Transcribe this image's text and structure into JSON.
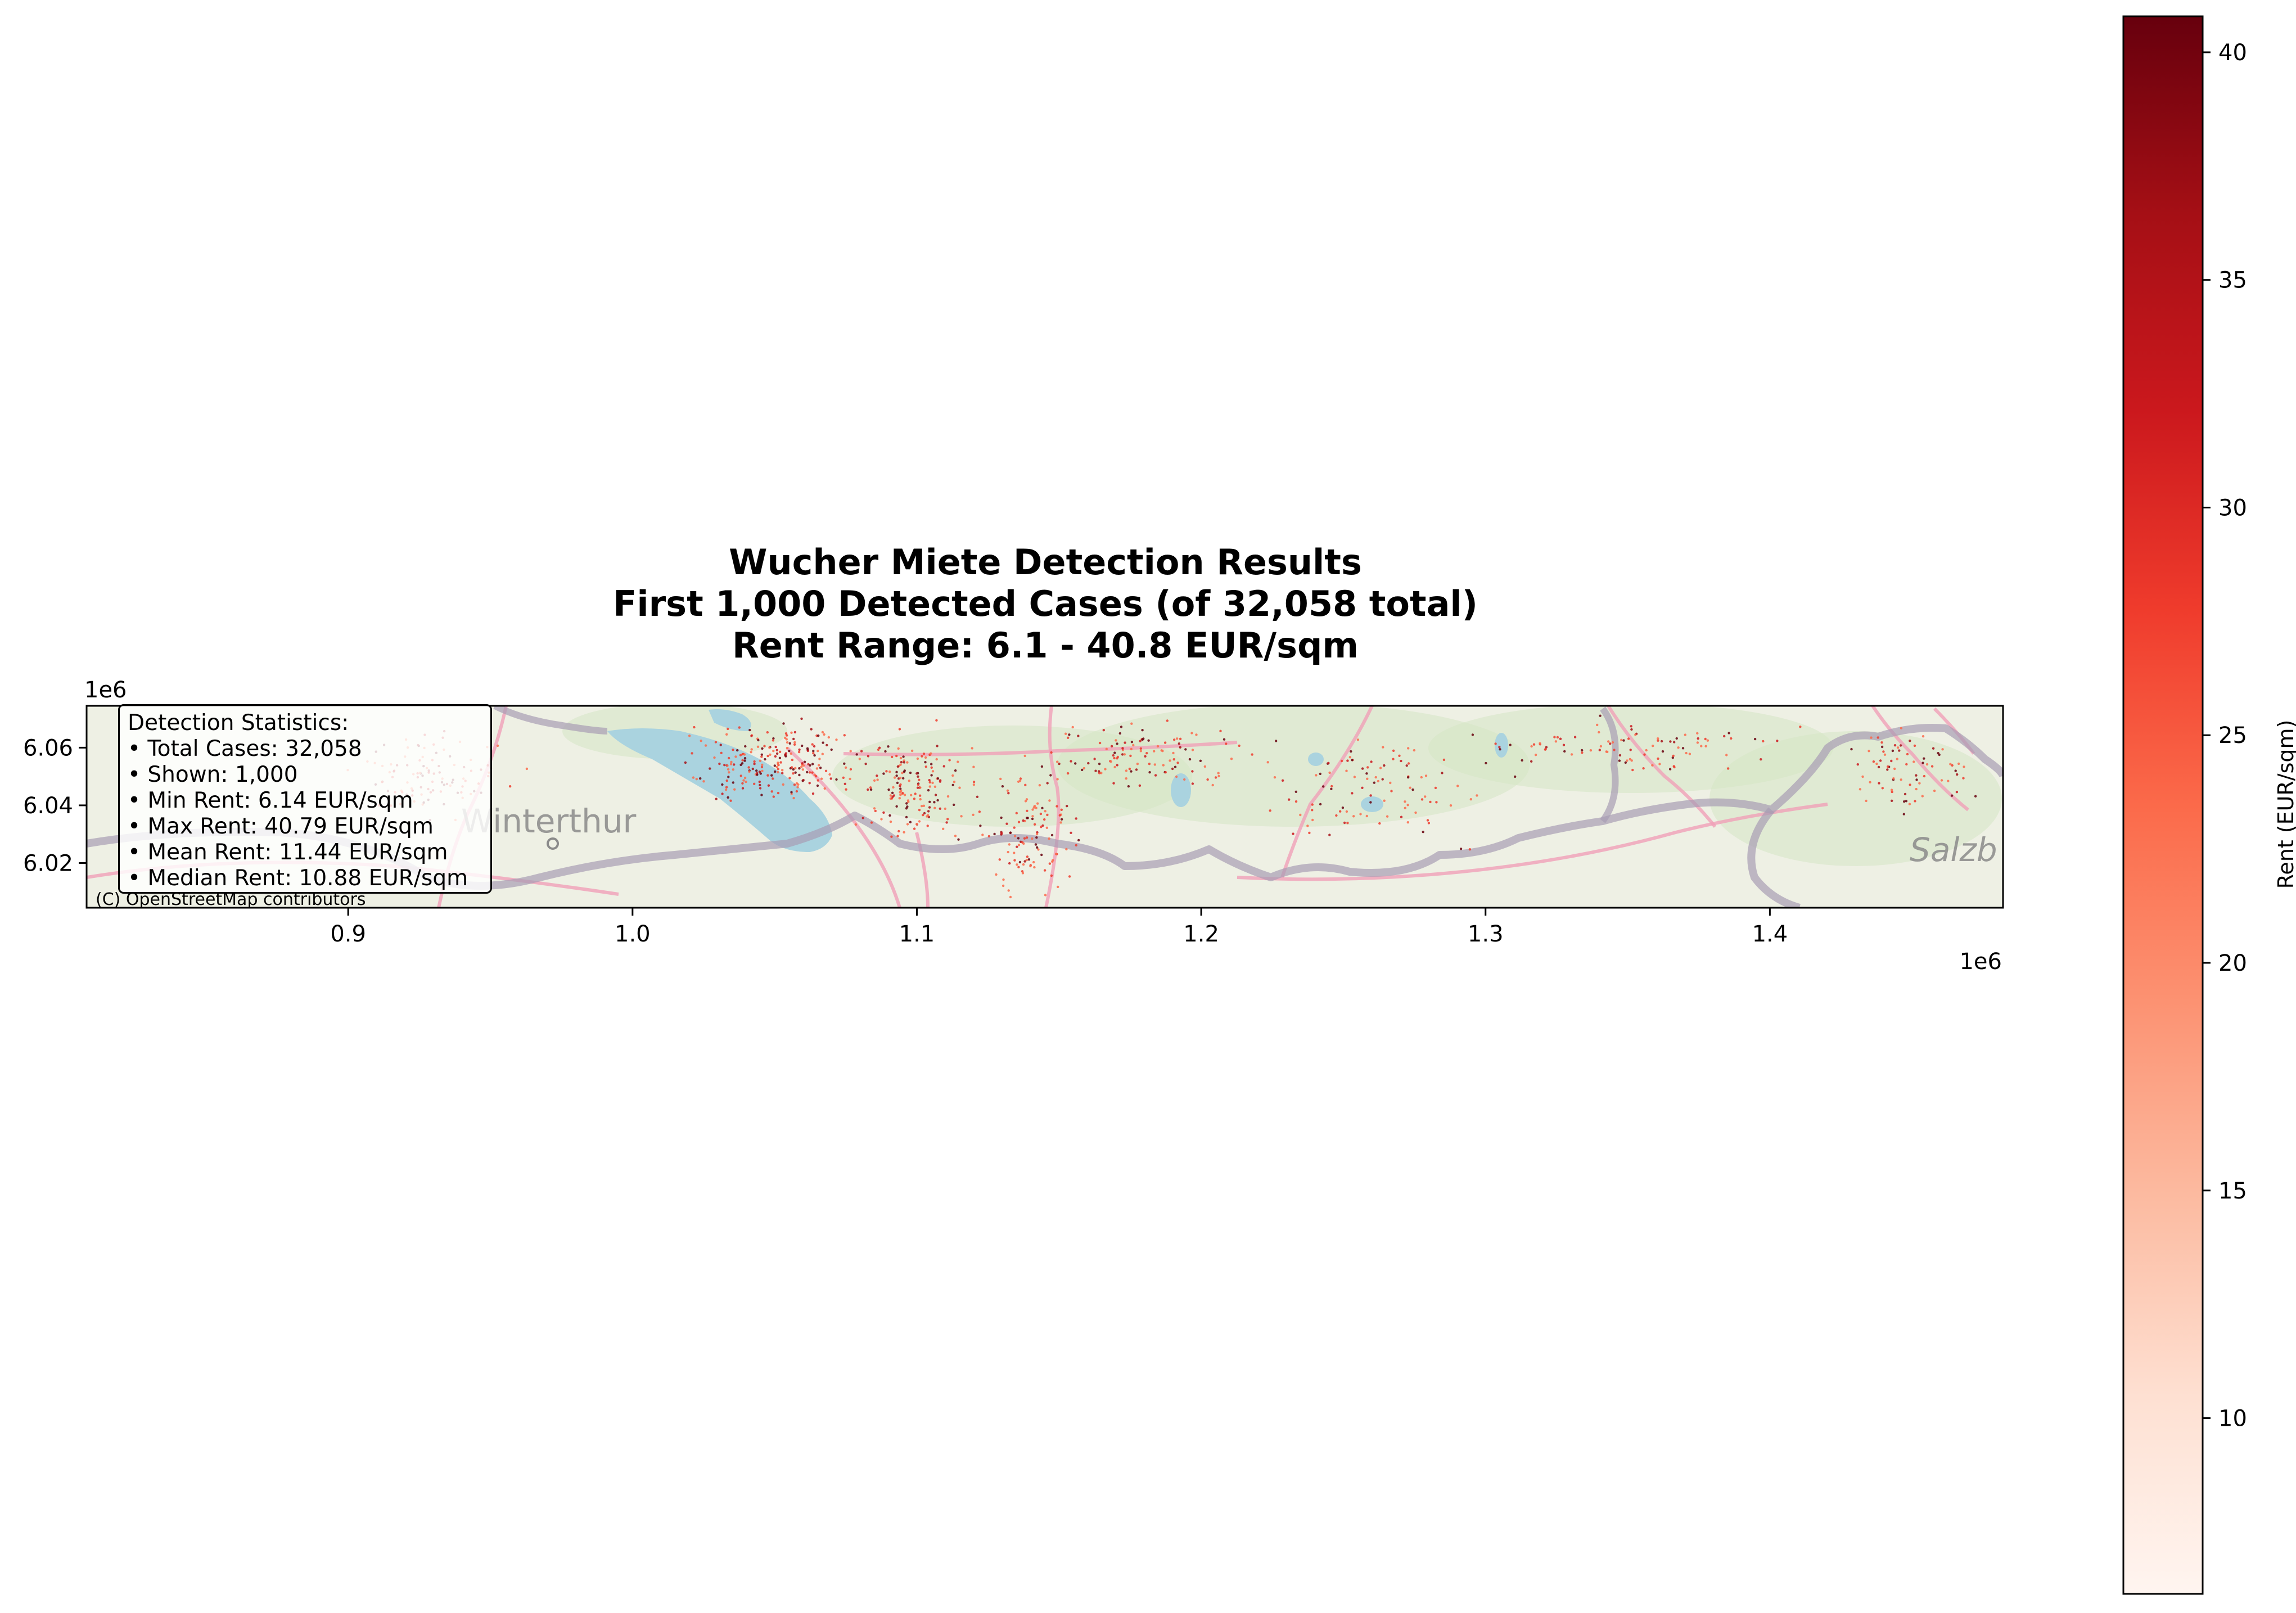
{
  "title": {
    "line1": "Wucher Miete Detection Results",
    "line2": "First 1,000 Detected Cases (of 32,058 total)",
    "line3": "Rent Range: 6.1 - 40.8 EUR/sqm"
  },
  "stats": {
    "heading": "Detection Statistics:",
    "items": [
      "• Total Cases: 32,058",
      "• Shown: 1,000",
      "• Min Rent: 6.14 EUR/sqm",
      "• Max Rent: 40.79 EUR/sqm",
      "• Mean Rent: 11.44 EUR/sqm",
      "• Median Rent: 10.88 EUR/sqm"
    ]
  },
  "map": {
    "attribution": "(C) OpenStreetMap contributors",
    "place_labels": [
      "Winterthur",
      "Salzb"
    ],
    "lake_color": "#aad3df",
    "land_color": "#eef0e4",
    "road_color": "#f0a0b8",
    "border_color": "#a89cb4"
  },
  "chart_data": {
    "type": "scatter",
    "x_offset_label": "1e6",
    "y_offset_label": "1e6",
    "xlim": [
      0.808,
      1.482
    ],
    "ylim": [
      6.0045,
      6.0745
    ],
    "x_ticks": [
      0.9,
      1.0,
      1.1,
      1.2,
      1.3,
      1.4
    ],
    "y_ticks": [
      6.02,
      6.04,
      6.06
    ],
    "x_tick_labels": [
      "0.9",
      "1.0",
      "1.1",
      "1.2",
      "1.3",
      "1.4"
    ],
    "y_tick_labels": [
      "6.02",
      "6.04",
      "6.06"
    ],
    "points_shown": 1000,
    "total_cases": 32058,
    "colorbar": {
      "label": "Rent (EUR/sqm)",
      "range": [
        6.14,
        40.79
      ],
      "ticks": [
        10,
        15,
        20,
        25,
        30,
        35,
        40
      ],
      "tick_labels": [
        "10",
        "15",
        "20",
        "25",
        "30",
        "35",
        "40"
      ],
      "colormap": "Reds",
      "colors": [
        "#fff5f0",
        "#fee0d2",
        "#fcbba1",
        "#fc9272",
        "#fb6a4a",
        "#ef3b2c",
        "#cb181d",
        "#a50f15",
        "#67000d"
      ]
    }
  }
}
